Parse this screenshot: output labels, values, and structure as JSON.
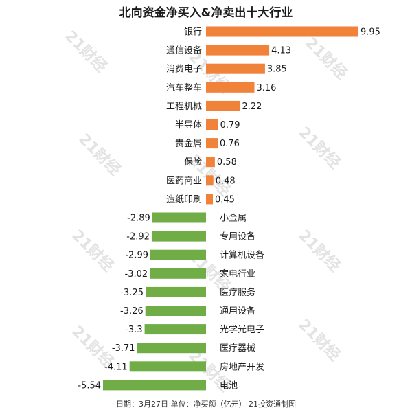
{
  "title": "北向资金净买入&净卖出十大行业",
  "footer": "日期：3月27日 单位：净买额（亿元） 21投资通制图",
  "watermark": "21财经",
  "colors": {
    "positive": "#f0823a",
    "negative": "#70ad47",
    "text": "#1a1a1a",
    "watermark": "#e3e3e3"
  },
  "chart_data": {
    "type": "bar",
    "orientation": "horizontal",
    "title": "北向资金净买入&净卖出十大行业",
    "categories": [
      "银行",
      "通信设备",
      "消费电子",
      "汽车整车",
      "工程机械",
      "半导体",
      "贵金属",
      "保险",
      "医药商业",
      "造纸印刷",
      "小金属",
      "专用设备",
      "计算机设备",
      "家电行业",
      "医疗服务",
      "通用设备",
      "光学光电子",
      "医疗器械",
      "房地产开发",
      "电池"
    ],
    "values": [
      9.95,
      4.13,
      3.85,
      3.16,
      2.22,
      0.79,
      0.76,
      0.58,
      0.48,
      0.45,
      -2.89,
      -2.92,
      -2.99,
      -3.02,
      -3.25,
      -3.26,
      -3.3,
      -3.71,
      -4.11,
      -5.54
    ],
    "labels": [
      "9.95",
      "4.13",
      "3.85",
      "3.16",
      "2.22",
      "0.79",
      "0.76",
      "0.58",
      "0.48",
      "0.45",
      "-2.89",
      "-2.92",
      "-2.99",
      "-3.02",
      "-3.25",
      "-3.26",
      "-3.3",
      "-3.71",
      "-4.11",
      "-5.54"
    ],
    "xlim": [
      -5.54,
      9.95
    ],
    "grid": false,
    "legend": "none"
  }
}
